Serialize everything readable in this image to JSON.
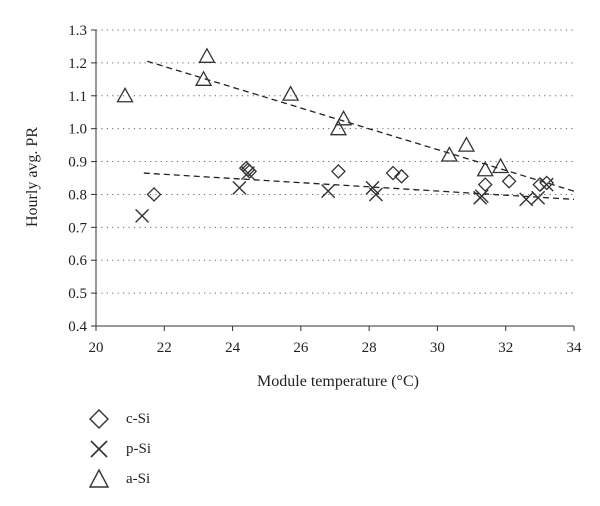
{
  "chart_data": {
    "type": "scatter",
    "title": "",
    "xlabel": "Module temperature (°C)",
    "ylabel": "Hourly avg. PR",
    "xlim": [
      20,
      34
    ],
    "ylim": [
      0.4,
      1.3
    ],
    "xticks": [
      20,
      22,
      24,
      26,
      28,
      30,
      32,
      34
    ],
    "yticks": [
      0.4,
      0.5,
      0.6,
      0.7,
      0.8,
      0.9,
      1.0,
      1.1,
      1.2,
      1.3
    ],
    "ytick_labels": [
      "0.4",
      "0.5",
      "0.6",
      "0.7",
      "0.8",
      "0.9",
      "1.0",
      "1.1",
      "1.2",
      "1.3"
    ],
    "grid": "horizontal dotted",
    "legend_position": "bottom-left",
    "series": [
      {
        "name": "c-Si",
        "marker": "diamond",
        "points": [
          [
            21.7,
            0.8
          ],
          [
            24.4,
            0.88
          ],
          [
            24.45,
            0.875
          ],
          [
            24.5,
            0.87
          ],
          [
            27.1,
            0.87
          ],
          [
            28.7,
            0.865
          ],
          [
            28.95,
            0.855
          ],
          [
            31.4,
            0.83
          ],
          [
            32.1,
            0.84
          ],
          [
            33.0,
            0.83
          ],
          [
            33.2,
            0.835
          ]
        ]
      },
      {
        "name": "p-Si",
        "marker": "cross",
        "points": [
          [
            21.35,
            0.735
          ],
          [
            24.2,
            0.82
          ],
          [
            24.45,
            0.865
          ],
          [
            26.8,
            0.81
          ],
          [
            28.1,
            0.82
          ],
          [
            28.2,
            0.8
          ],
          [
            31.25,
            0.79
          ],
          [
            31.3,
            0.795
          ],
          [
            32.6,
            0.785
          ],
          [
            32.95,
            0.79
          ],
          [
            33.2,
            0.83
          ]
        ]
      },
      {
        "name": "a-Si",
        "marker": "triangle",
        "points": [
          [
            20.85,
            1.1
          ],
          [
            23.15,
            1.15
          ],
          [
            23.25,
            1.22
          ],
          [
            25.7,
            1.105
          ],
          [
            27.1,
            1.0
          ],
          [
            27.25,
            1.03
          ],
          [
            30.35,
            0.92
          ],
          [
            30.85,
            0.95
          ],
          [
            31.4,
            0.875
          ],
          [
            31.85,
            0.885
          ]
        ]
      }
    ],
    "trendlines": [
      {
        "series": "a-Si",
        "style": "dashed",
        "from": [
          21.5,
          1.205
        ],
        "to": [
          34.0,
          0.81
        ]
      },
      {
        "series": "c-Si/p-Si",
        "style": "dashed",
        "from": [
          21.4,
          0.865
        ],
        "to": [
          34.0,
          0.785
        ]
      }
    ]
  },
  "legend": [
    {
      "label": "c-Si",
      "marker": "diamond"
    },
    {
      "label": "p-Si",
      "marker": "cross"
    },
    {
      "label": "a-Si",
      "marker": "triangle"
    }
  ]
}
